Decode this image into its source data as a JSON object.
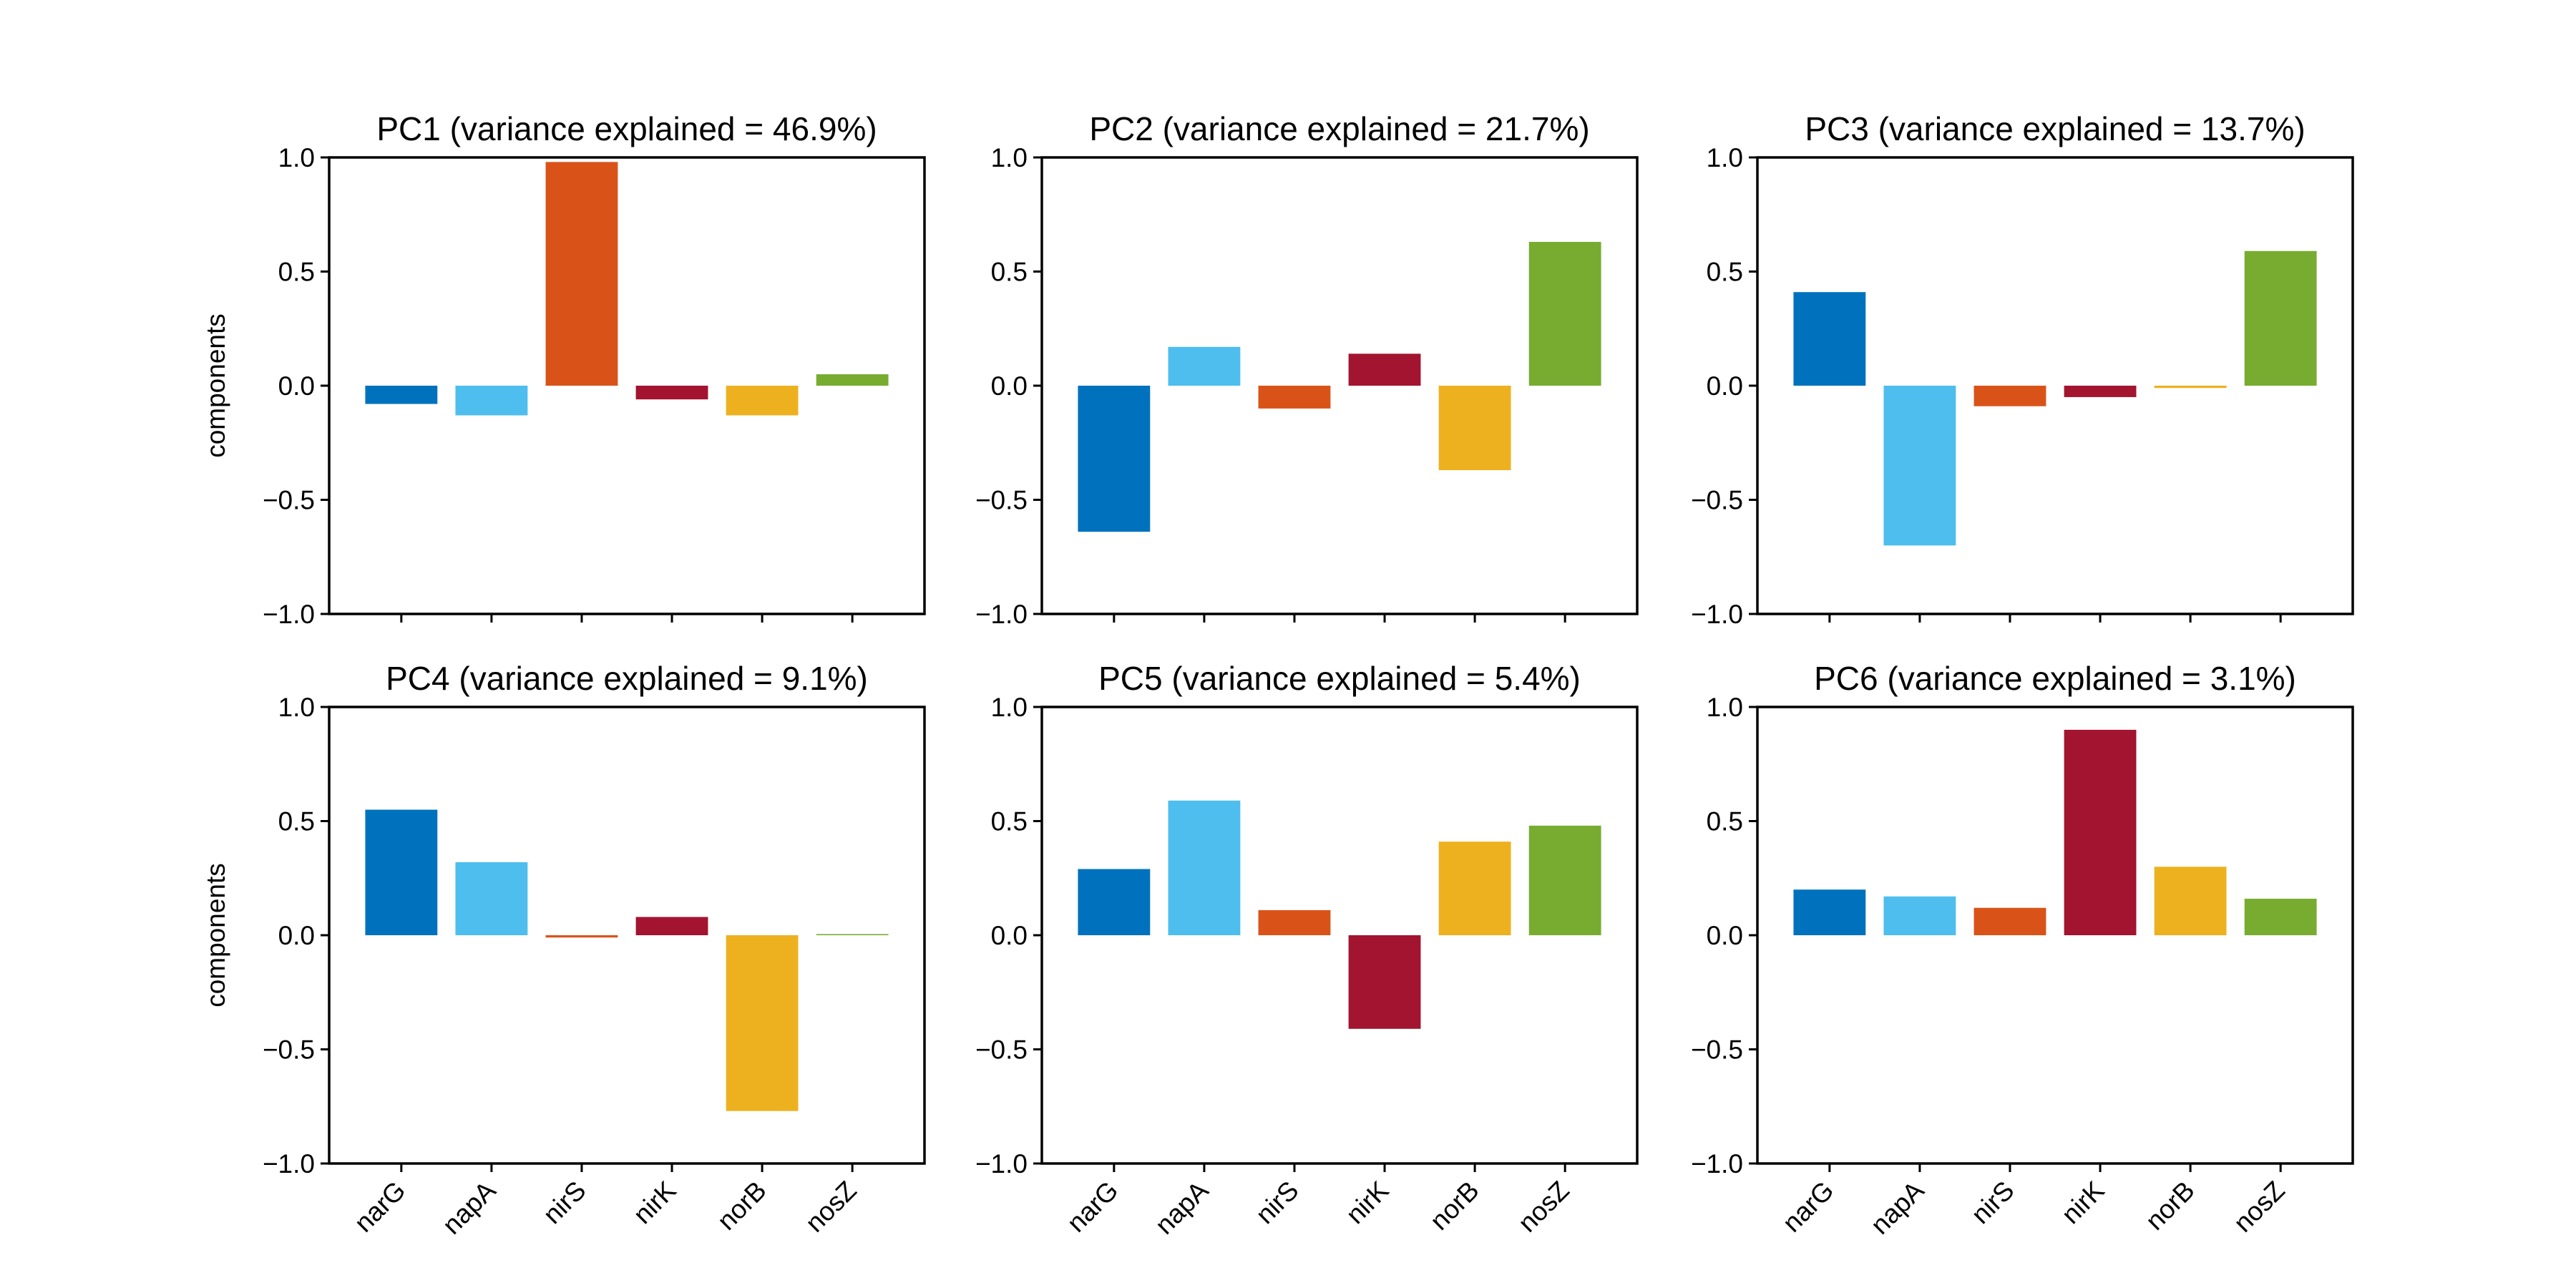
{
  "chart_data": [
    {
      "type": "bar",
      "title": "PC1 (variance explained = 46.9%)",
      "ylabel": "components",
      "categories": [
        "narG",
        "napA",
        "nirS",
        "nirK",
        "norB",
        "nosZ"
      ],
      "values": [
        -0.08,
        -0.13,
        0.98,
        -0.06,
        -0.13,
        0.05
      ],
      "ylim": [
        -1.0,
        1.0
      ],
      "yticks": [
        "1.0",
        "0.5",
        "0.0",
        "−0.5",
        "−1.0"
      ],
      "show_xticklabels": false
    },
    {
      "type": "bar",
      "title": "PC2 (variance explained = 21.7%)",
      "ylabel": "",
      "categories": [
        "narG",
        "napA",
        "nirS",
        "nirK",
        "norB",
        "nosZ"
      ],
      "values": [
        -0.64,
        0.17,
        -0.1,
        0.14,
        -0.37,
        0.63
      ],
      "ylim": [
        -1.0,
        1.0
      ],
      "yticks": [
        "1.0",
        "0.5",
        "0.0",
        "−0.5",
        "−1.0"
      ],
      "show_xticklabels": false
    },
    {
      "type": "bar",
      "title": "PC3 (variance explained = 13.7%)",
      "ylabel": "",
      "categories": [
        "narG",
        "napA",
        "nirS",
        "nirK",
        "norB",
        "nosZ"
      ],
      "values": [
        0.41,
        -0.7,
        -0.09,
        -0.05,
        -0.01,
        0.59
      ],
      "ylim": [
        -1.0,
        1.0
      ],
      "yticks": [
        "1.0",
        "0.5",
        "0.0",
        "−0.5",
        "−1.0"
      ],
      "show_xticklabels": false
    },
    {
      "type": "bar",
      "title": "PC4 (variance explained = 9.1%)",
      "ylabel": "components",
      "categories": [
        "narG",
        "napA",
        "nirS",
        "nirK",
        "norB",
        "nosZ"
      ],
      "values": [
        0.55,
        0.32,
        -0.01,
        0.08,
        -0.77,
        0.005
      ],
      "ylim": [
        -1.0,
        1.0
      ],
      "yticks": [
        "1.0",
        "0.5",
        "0.0",
        "−0.5",
        "−1.0"
      ],
      "show_xticklabels": true
    },
    {
      "type": "bar",
      "title": "PC5 (variance explained = 5.4%)",
      "ylabel": "",
      "categories": [
        "narG",
        "napA",
        "nirS",
        "nirK",
        "norB",
        "nosZ"
      ],
      "values": [
        0.29,
        0.59,
        0.11,
        -0.41,
        0.41,
        0.48
      ],
      "ylim": [
        -1.0,
        1.0
      ],
      "yticks": [
        "1.0",
        "0.5",
        "0.0",
        "−0.5",
        "−1.0"
      ],
      "show_xticklabels": true
    },
    {
      "type": "bar",
      "title": "PC6 (variance explained = 3.1%)",
      "ylabel": "",
      "categories": [
        "narG",
        "napA",
        "nirS",
        "nirK",
        "norB",
        "nosZ"
      ],
      "values": [
        0.2,
        0.17,
        0.12,
        0.9,
        0.3,
        0.16
      ],
      "ylim": [
        -1.0,
        1.0
      ],
      "yticks": [
        "1.0",
        "0.5",
        "0.0",
        "−0.5",
        "−1.0"
      ],
      "show_xticklabels": true
    }
  ],
  "colors": [
    "#0072BD",
    "#4DBEEE",
    "#D95319",
    "#A2142F",
    "#EDB120",
    "#77AC30"
  ]
}
